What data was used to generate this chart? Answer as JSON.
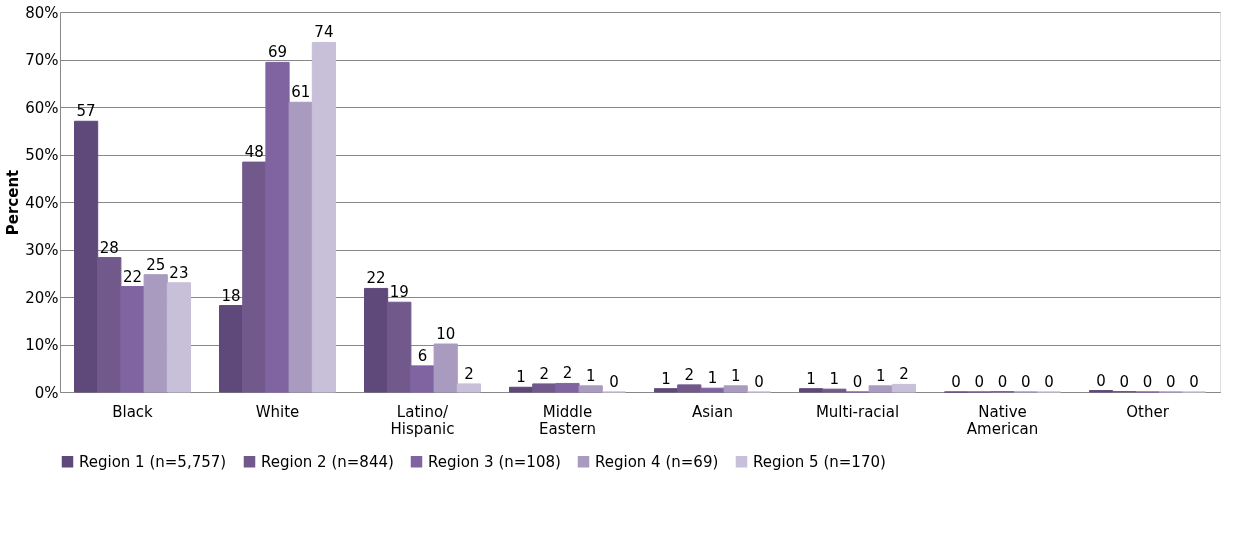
{
  "chart_data": {
    "type": "bar",
    "ylabel": "Percent",
    "categories": [
      "Black",
      "White",
      "Latino/\nHispanic",
      "Middle\nEastern",
      "Asian",
      "Multi-racial",
      "Native\nAmerican",
      "Other"
    ],
    "series": [
      {
        "name": "Region 1 (n=5,757)",
        "color": "#5f497a",
        "values": [
          57.0,
          18.2,
          21.8,
          1.0,
          0.7,
          0.7,
          0,
          0.3
        ],
        "value_labels": [
          "57",
          "18",
          "22",
          "1",
          "1",
          "1",
          "0",
          "0"
        ]
      },
      {
        "name": "Region 2 (n=844)",
        "color": "#71598c",
        "values": [
          28.3,
          48.4,
          18.9,
          1.7,
          1.5,
          0.6,
          0,
          0.1
        ],
        "value_labels": [
          "28",
          "48",
          "19",
          "2",
          "2",
          "1",
          "0",
          "0"
        ]
      },
      {
        "name": "Region 3 (n=108)",
        "color": "#8064a2",
        "values": [
          22.2,
          69.4,
          5.5,
          1.8,
          0.8,
          0,
          0.1,
          0
        ],
        "value_labels": [
          "22",
          "69",
          "6",
          "2",
          "1",
          "0",
          "0",
          "0"
        ]
      },
      {
        "name": "Region 4 (n=69)",
        "color": "#a99bbf",
        "values": [
          24.7,
          61.0,
          10.1,
          1.3,
          1.3,
          1.3,
          0,
          0
        ],
        "value_labels": [
          "25",
          "61",
          "10",
          "1",
          "1",
          "1",
          "0",
          "0"
        ]
      },
      {
        "name": "Region 5 (n=170)",
        "color": "#c8bfd8",
        "values": [
          23.0,
          73.6,
          1.7,
          0,
          0,
          1.6,
          0,
          0
        ],
        "value_labels": [
          "23",
          "74",
          "2",
          "0",
          "0",
          "2",
          "0",
          "0"
        ]
      }
    ],
    "ylim": [
      0,
      80
    ],
    "yticks": [
      {
        "value": 0,
        "label": "0%"
      },
      {
        "value": 10,
        "label": "10%"
      },
      {
        "value": 20,
        "label": "20%"
      },
      {
        "value": 30,
        "label": "30%"
      },
      {
        "value": 40,
        "label": "40%"
      },
      {
        "value": 50,
        "label": "50%"
      },
      {
        "value": 60,
        "label": "60%"
      },
      {
        "value": 70,
        "label": "70%"
      },
      {
        "value": 80,
        "label": "80%"
      }
    ],
    "grid": "y",
    "legend": "bottom"
  }
}
